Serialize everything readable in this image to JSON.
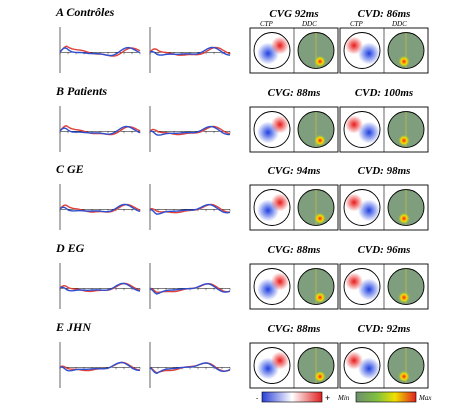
{
  "rows": [
    {
      "label": "A  Contrôles",
      "cvg": "CVG 92ms",
      "cvd": "CVD: 86ms"
    },
    {
      "label": "B  Patients",
      "cvg": "CVG: 88ms",
      "cvd": "CVD: 100ms"
    },
    {
      "label": "C  GE",
      "cvg": "CVG: 94ms",
      "cvd": "CVD: 98ms"
    },
    {
      "label": "D  EG",
      "cvg": "CVG: 88ms",
      "cvd": "CVD: 96ms"
    },
    {
      "label": "E  JHN",
      "cvg": "CVG: 88ms",
      "cvd": "CVD: 92ms"
    }
  ],
  "map_labels": {
    "ctp": "CTP",
    "ddc": "DDC"
  },
  "legend": {
    "minus": "-",
    "plus": "+",
    "min": "Min",
    "max": "Max"
  },
  "wave_colors": {
    "red": "#e0403a",
    "blue": "#2c4fd0"
  }
}
